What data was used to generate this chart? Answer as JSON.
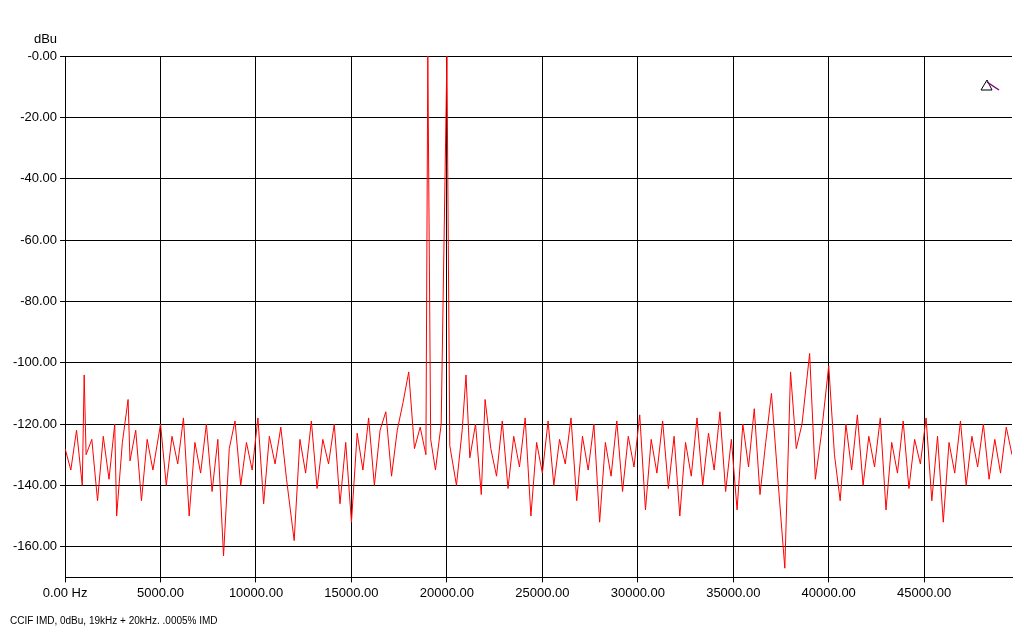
{
  "chart_data": {
    "type": "line",
    "ylabel": "dBu",
    "annotations": [
      "CCIF IMD, 0dBu, 19kHz + 20kHz. .0005% IMD"
    ],
    "xlim": [
      0,
      49600
    ],
    "ylim": [
      -170,
      0
    ],
    "xticks": [
      {
        "value": 0,
        "label": "0.00 Hz"
      },
      {
        "value": 5000,
        "label": "5000.00"
      },
      {
        "value": 10000,
        "label": "10000.00"
      },
      {
        "value": 15000,
        "label": "15000.00"
      },
      {
        "value": 20000,
        "label": "20000.00"
      },
      {
        "value": 25000,
        "label": "25000.00"
      },
      {
        "value": 30000,
        "label": "30000.00"
      },
      {
        "value": 35000,
        "label": "35000.00"
      },
      {
        "value": 40000,
        "label": "40000.00"
      },
      {
        "value": 45000,
        "label": "45000.00"
      }
    ],
    "yticks": [
      {
        "value": 0,
        "label": "-0.00"
      },
      {
        "value": -20,
        "label": "-20.00"
      },
      {
        "value": -40,
        "label": "-40.00"
      },
      {
        "value": -60,
        "label": "-60.00"
      },
      {
        "value": -80,
        "label": "-80.00"
      },
      {
        "value": -100,
        "label": "-100.00"
      },
      {
        "value": -120,
        "label": "-120.00"
      },
      {
        "value": -140,
        "label": "-140.00"
      },
      {
        "value": -160,
        "label": "-160.00"
      }
    ],
    "grid": true,
    "legend": false,
    "marker": "none",
    "line_style": "solid",
    "series": [
      {
        "color": "#ff0000",
        "x": [
          0,
          300,
          600,
          900,
          1000,
          1100,
          1400,
          1700,
          2000,
          2300,
          2600,
          2700,
          3000,
          3300,
          3400,
          3700,
          4000,
          4300,
          4600,
          5000,
          5300,
          5600,
          5900,
          6200,
          6500,
          6800,
          7100,
          7400,
          7700,
          8000,
          8300,
          8600,
          8900,
          9200,
          9500,
          9800,
          10100,
          10400,
          10700,
          11000,
          11300,
          11600,
          12000,
          12300,
          12600,
          12900,
          13200,
          13500,
          13800,
          14100,
          14400,
          14700,
          15000,
          15300,
          15600,
          15900,
          16200,
          16500,
          16800,
          17100,
          17400,
          17700,
          18000,
          18300,
          18600,
          18900,
          19000,
          19150,
          19400,
          19700,
          20000,
          20150,
          20500,
          20800,
          21000,
          21200,
          21500,
          21800,
          22000,
          22300,
          22600,
          22900,
          23200,
          23500,
          23800,
          24100,
          24400,
          24700,
          25000,
          25300,
          25600,
          25900,
          26200,
          26500,
          26800,
          27100,
          27400,
          27700,
          28000,
          28300,
          28600,
          28900,
          29200,
          29500,
          29800,
          30100,
          30400,
          30700,
          31000,
          31300,
          31600,
          31900,
          32200,
          32500,
          32800,
          33100,
          33400,
          33700,
          34000,
          34300,
          34600,
          34900,
          35200,
          35500,
          35800,
          36100,
          36400,
          36700,
          37000,
          37300,
          37700,
          38000,
          38300,
          38600,
          39000,
          39300,
          39600,
          40000,
          40300,
          40600,
          40900,
          41200,
          41500,
          41800,
          42100,
          42400,
          42700,
          43000,
          43300,
          43600,
          43900,
          44200,
          44500,
          44800,
          45100,
          45400,
          45700,
          46000,
          46300,
          46600,
          46900,
          47200,
          47500,
          47800,
          48100,
          48400,
          48700,
          49000,
          49300,
          49600
        ],
        "values": [
          -128,
          -135,
          -122,
          -140,
          -104,
          -130,
          -125,
          -145,
          -124,
          -138,
          -120,
          -150,
          -126,
          -112,
          -132,
          -122,
          -145,
          -125,
          -135,
          -120,
          -140,
          -124,
          -133,
          -118,
          -150,
          -126,
          -136,
          -120,
          -142,
          -125,
          -163,
          -128,
          -119,
          -140,
          -126,
          -135,
          -118,
          -146,
          -124,
          -133,
          -121,
          -138,
          -158,
          -125,
          -136,
          -119,
          -141,
          -125,
          -133,
          -120,
          -146,
          -126,
          -152,
          -123,
          -135,
          -118,
          -140,
          -122,
          -116,
          -137,
          -122,
          -113,
          -103,
          -128,
          -121,
          -130,
          0,
          -125,
          -135,
          -120,
          0,
          -127,
          -140,
          -122,
          -104,
          -131,
          -120,
          -143,
          -112,
          -128,
          -137,
          -119,
          -141,
          -124,
          -134,
          -118,
          -150,
          -126,
          -136,
          -119,
          -140,
          -125,
          -133,
          -118,
          -145,
          -124,
          -135,
          -120,
          -152,
          -126,
          -137,
          -119,
          -142,
          -124,
          -134,
          -117,
          -148,
          -125,
          -136,
          -119,
          -141,
          -124,
          -150,
          -126,
          -137,
          -118,
          -140,
          -123,
          -135,
          -116,
          -142,
          -125,
          -148,
          -120,
          -134,
          -115,
          -143,
          -126,
          -110,
          -135,
          -167,
          -103,
          -128,
          -120,
          -97,
          -138,
          -124,
          -101,
          -130,
          -145,
          -120,
          -135,
          -117,
          -140,
          -124,
          -134,
          -118,
          -148,
          -126,
          -136,
          -119,
          -141,
          -125,
          -133,
          -118,
          -145,
          -124,
          -152,
          -126,
          -136,
          -119,
          -140,
          -124,
          -134,
          -120,
          -138,
          -125,
          -136,
          -121,
          -130
        ]
      }
    ]
  }
}
